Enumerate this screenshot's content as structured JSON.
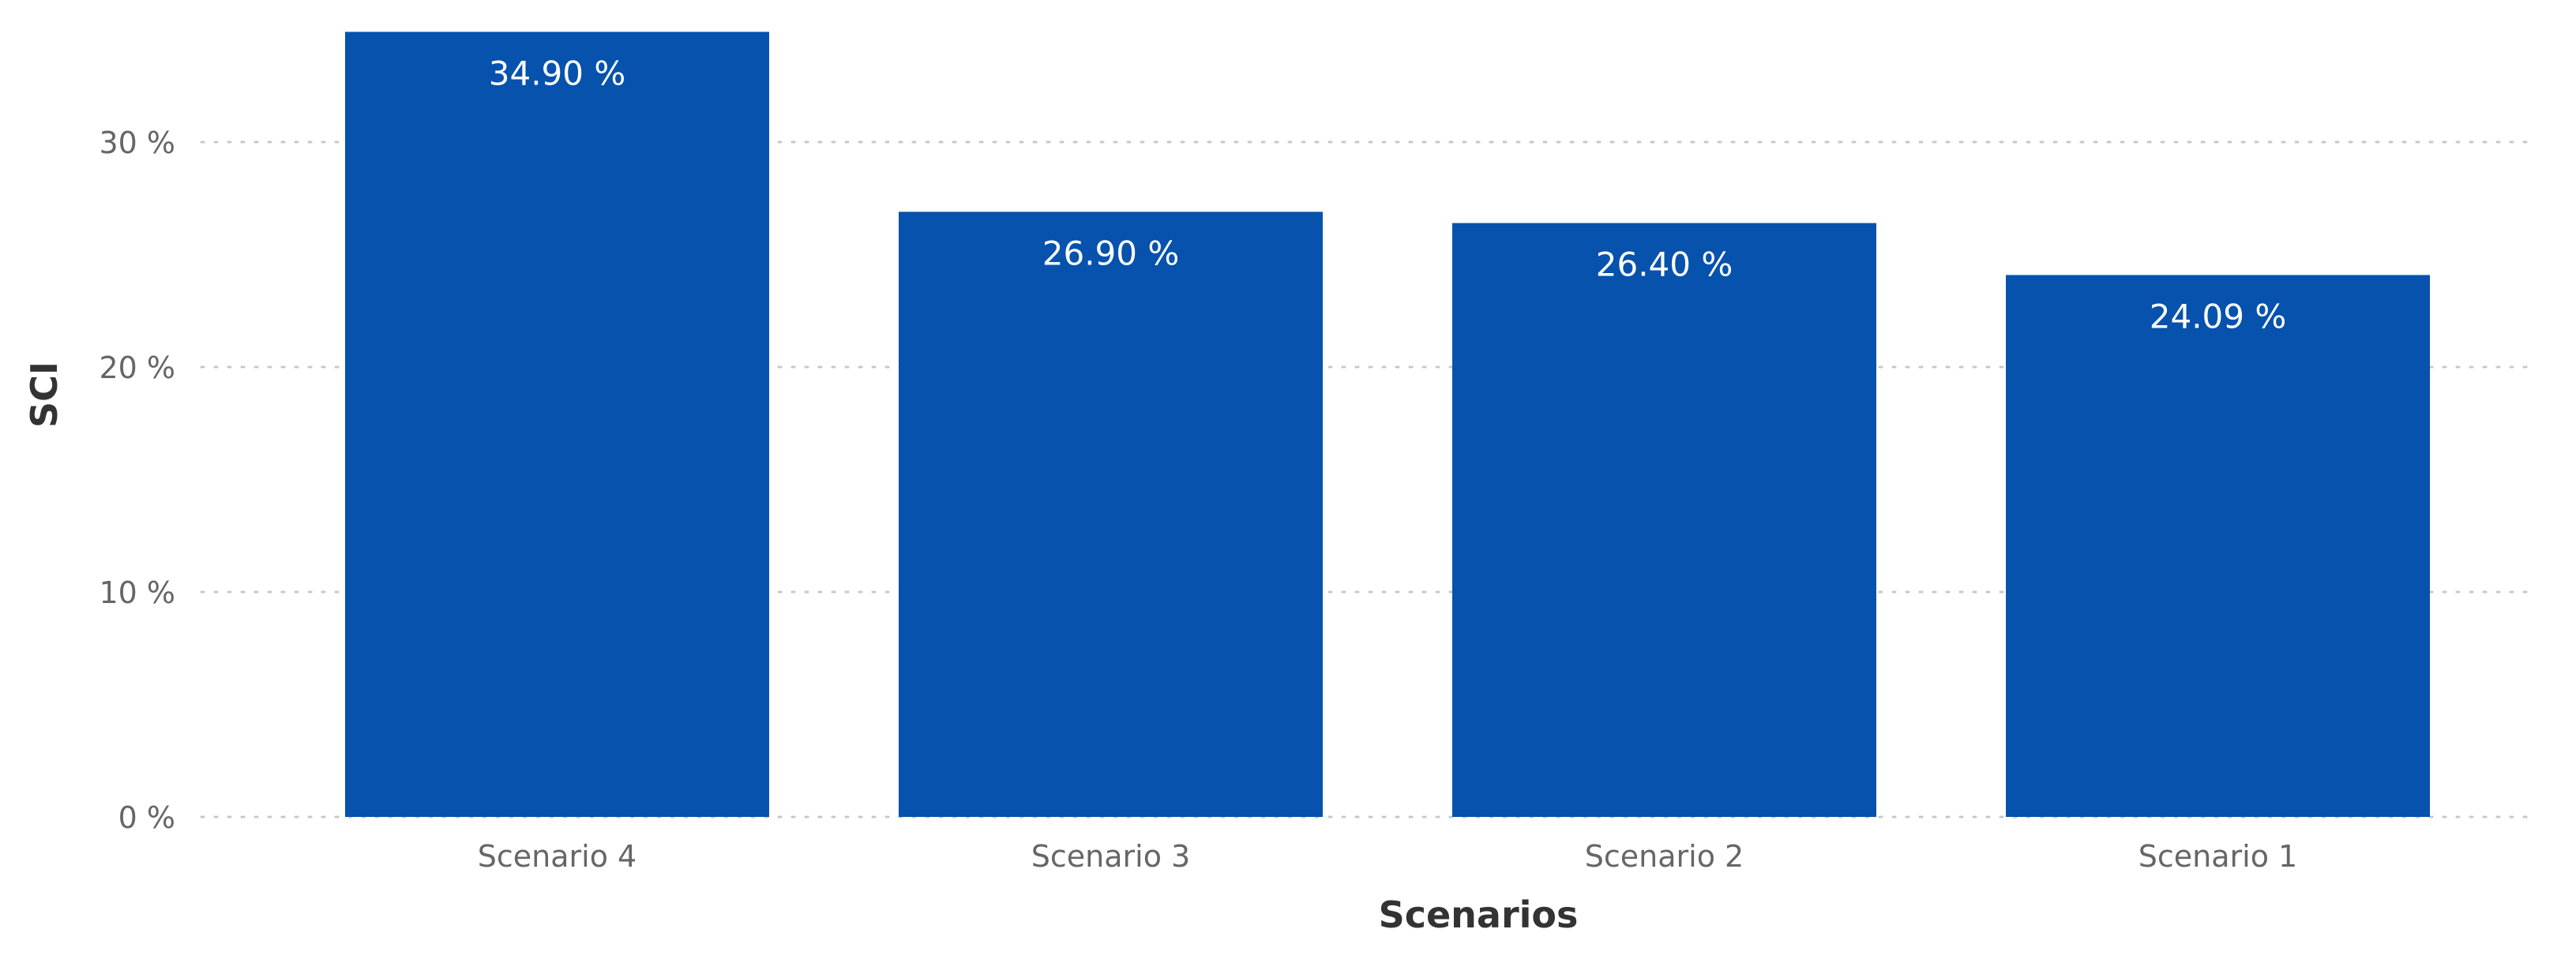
{
  "chart_data": {
    "type": "bar",
    "categories": [
      "Scenario 4",
      "Scenario 3",
      "Scenario 2",
      "Scenario 1"
    ],
    "values": [
      34.9,
      26.9,
      26.4,
      24.09
    ],
    "data_labels": [
      "34.90 %",
      "26.90 %",
      "26.40 %",
      "24.09 %"
    ],
    "xlabel": "Scenarios",
    "ylabel": "SCI",
    "ylim": [
      0,
      35
    ],
    "y_ticks": [
      0,
      10,
      20,
      30
    ],
    "y_tick_labels": [
      "0 %",
      "10 %",
      "20 %",
      "30 %"
    ],
    "grid": true,
    "bar_color": "#0652AD"
  }
}
